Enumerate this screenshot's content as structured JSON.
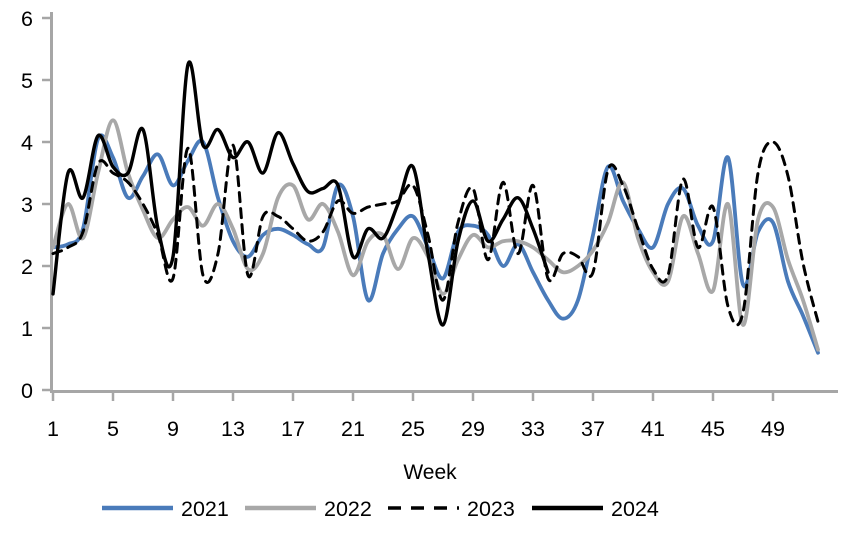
{
  "chart_data": {
    "type": "line",
    "title": "",
    "xlabel": "Week",
    "ylabel": "",
    "xlim": [
      1,
      52.5
    ],
    "ylim": [
      0,
      6
    ],
    "grid": false,
    "legend_position": "bottom",
    "axis_color": "#a6a6a6",
    "text_color": "#000000",
    "x_ticks": [
      1,
      5,
      9,
      13,
      17,
      21,
      25,
      29,
      33,
      37,
      41,
      45,
      49
    ],
    "y_ticks": [
      0,
      1,
      2,
      3,
      4,
      5,
      6
    ],
    "x_start_week": 1,
    "series": [
      {
        "name": "2021",
        "color": "#4a7bba",
        "dash": "solid",
        "width": 3.8,
        "values": [
          2.3,
          2.35,
          2.6,
          4.05,
          3.75,
          3.1,
          3.45,
          3.8,
          3.3,
          3.7,
          4.0,
          3.1,
          2.4,
          2.15,
          2.5,
          2.6,
          2.5,
          2.35,
          2.3,
          3.3,
          2.8,
          1.45,
          2.2,
          2.6,
          2.8,
          2.3,
          1.8,
          2.55,
          2.65,
          2.5,
          2.0,
          2.35,
          1.9,
          1.45,
          1.15,
          1.45,
          2.5,
          3.6,
          3.05,
          2.6,
          2.3,
          3.0,
          3.25,
          2.65,
          2.4,
          3.75,
          1.7,
          2.55,
          2.7,
          1.75,
          1.2,
          0.6
        ]
      },
      {
        "name": "2022",
        "color": "#a8a8a8",
        "dash": "solid",
        "width": 3.8,
        "values": [
          2.3,
          3.0,
          2.45,
          3.5,
          4.35,
          3.5,
          2.9,
          2.45,
          2.75,
          2.95,
          2.65,
          3.0,
          2.6,
          1.95,
          2.2,
          3.1,
          3.3,
          2.75,
          3.0,
          2.55,
          1.85,
          2.4,
          2.5,
          1.95,
          2.45,
          2.15,
          1.55,
          2.1,
          2.5,
          2.3,
          2.4,
          2.4,
          2.3,
          2.1,
          1.9,
          2.0,
          2.25,
          2.7,
          3.35,
          2.45,
          1.9,
          1.75,
          2.8,
          2.2,
          1.6,
          3.0,
          1.05,
          2.75,
          2.95,
          2.1,
          1.45,
          0.65
        ]
      },
      {
        "name": "2023",
        "color": "#000000",
        "dash": "dashed",
        "width": 3.0,
        "values": [
          2.2,
          2.3,
          2.55,
          3.65,
          3.5,
          3.35,
          3.0,
          2.5,
          1.8,
          3.9,
          1.85,
          2.2,
          3.95,
          1.85,
          2.8,
          2.8,
          2.6,
          2.4,
          2.55,
          3.05,
          2.85,
          2.95,
          3.0,
          3.05,
          3.3,
          2.5,
          1.45,
          2.7,
          3.25,
          2.1,
          3.35,
          2.2,
          3.3,
          1.8,
          2.2,
          2.15,
          1.9,
          3.55,
          3.3,
          2.6,
          1.95,
          1.85,
          3.4,
          2.3,
          2.95,
          1.35,
          1.25,
          3.5,
          4.0,
          3.45,
          2.05,
          1.1
        ]
      },
      {
        "name": "2024",
        "color": "#000000",
        "dash": "solid",
        "width": 3.4,
        "values": [
          1.55,
          3.5,
          3.1,
          4.1,
          3.6,
          3.5,
          4.2,
          2.6,
          2.15,
          5.25,
          3.95,
          4.2,
          3.75,
          4.0,
          3.5,
          4.15,
          3.65,
          3.2,
          3.25,
          3.3,
          2.15,
          2.6,
          2.45,
          3.0,
          3.6,
          2.2,
          1.05,
          2.4,
          3.05,
          2.4,
          2.75,
          3.1,
          2.6,
          1.9
        ]
      }
    ]
  }
}
